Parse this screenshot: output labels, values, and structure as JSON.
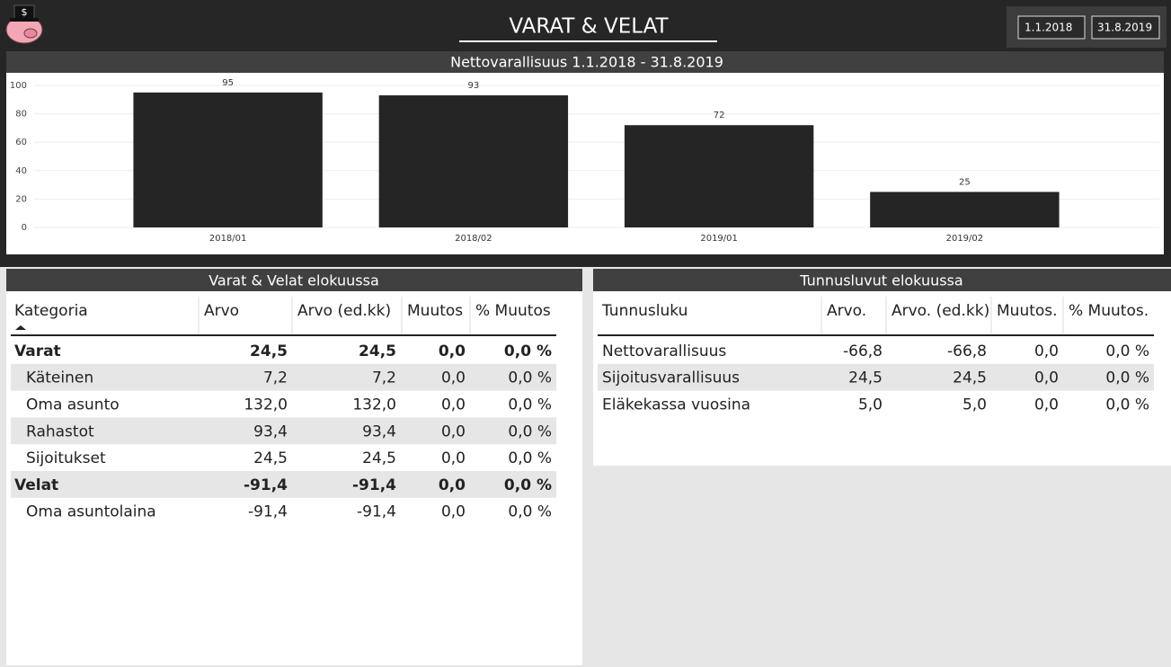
{
  "header": {
    "title": "VARAT & VELAT",
    "start_date": "1.1.2018",
    "end_date": "31.8.2019"
  },
  "chart_data": {
    "type": "bar",
    "title": "Nettovarallisuus 1.1.2018 - 31.8.2019",
    "categories": [
      "2018/01",
      "2018/02",
      "2019/01",
      "2019/02"
    ],
    "values": [
      95,
      93,
      72,
      25
    ],
    "color": "#252525",
    "ylim": [
      0,
      100
    ],
    "yticks": [
      0,
      20,
      40,
      60,
      80,
      100
    ],
    "grid": true
  },
  "table1": {
    "title": "Varat & Velat elokuussa",
    "columns": [
      "Kategoria",
      "Arvo",
      "Arvo (ed.kk)",
      "Muutos",
      "% Muutos"
    ],
    "rows": [
      [
        "Varat",
        "24,5",
        "24,5",
        "0,0",
        "0,0 %"
      ],
      [
        "Käteinen",
        "7,2",
        "7,2",
        "0,0",
        "0,0 %"
      ],
      [
        "Oma asunto",
        "132,0",
        "132,0",
        "0,0",
        "0,0 %"
      ],
      [
        "Rahastot",
        "93,4",
        "93,4",
        "0,0",
        "0,0 %"
      ],
      [
        "Sijoitukset",
        "24,5",
        "24,5",
        "0,0",
        "0,0 %"
      ],
      [
        "Velat",
        "-91,4",
        "-91,4",
        "0,0",
        "0,0 %"
      ],
      [
        "Oma asuntolaina",
        "-91,4",
        "-91,4",
        "0,0",
        "0,0 %"
      ]
    ]
  },
  "table2": {
    "title": "Tunnusluvut elokuussa",
    "columns": [
      "Tunnusluku",
      "Arvo.",
      "Arvo. (ed.kk)",
      "Muutos.",
      "% Muutos."
    ],
    "rows": [
      [
        "Nettovarallisuus",
        "-66,8",
        "-66,8",
        "0,0",
        "0,0 %"
      ],
      [
        "Sijoitusvarallisuus",
        "24,5",
        "24,5",
        "0,0",
        "0,0 %"
      ],
      [
        "Eläkekassa vuosina",
        "5,0",
        "5,0",
        "0,0",
        "0,0 %"
      ]
    ]
  }
}
